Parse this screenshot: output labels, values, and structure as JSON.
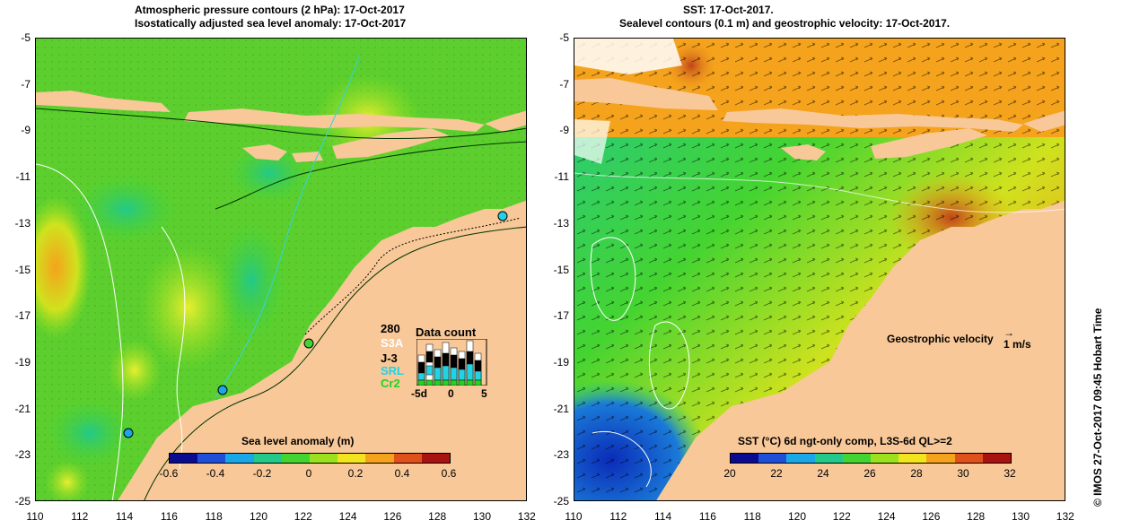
{
  "left_panel": {
    "title_line1": "Atmospheric pressure contours (2 hPa): 17-Oct-2017",
    "title_line2": "Isostatically adjusted sea level anomaly: 17-Oct-2017",
    "colorbar": {
      "title": "Sea level anomaly (m)",
      "ticks": [
        "-0.6",
        "-0.4",
        "-0.2",
        "0",
        "0.2",
        "0.4",
        "0.6"
      ],
      "colors": [
        "#0b0b8f",
        "#1f4fd8",
        "#1aa7e8",
        "#22c98a",
        "#44d431",
        "#9be21e",
        "#f2e41d",
        "#f5a31c",
        "#e0501a",
        "#a8130f"
      ]
    },
    "data_count": {
      "title": "Data count",
      "max_label": "280",
      "series": [
        {
          "label": "S3A",
          "color": "#ffffff"
        },
        {
          "label": "J-3",
          "color": "#000000"
        },
        {
          "label": "SRL",
          "color": "#22d3e6"
        },
        {
          "label": "Cr2",
          "color": "#22d322"
        }
      ],
      "xticks": [
        "-5d",
        "0",
        "5"
      ]
    }
  },
  "right_panel": {
    "title_line1": "SST: 17-Oct-2017.",
    "title_line2": "Sealevel contours (0.1 m) and geostrophic velocity: 17-Oct-2017.",
    "velocity_label": "Geostrophic velocity",
    "velocity_scale": "1 m/s",
    "colorbar": {
      "title": "SST (°C) 6d ngt-only comp, L3S-6d QL>=2",
      "ticks": [
        "20",
        "22",
        "24",
        "26",
        "28",
        "30",
        "32"
      ],
      "colors": [
        "#0b0b8f",
        "#1f4fd8",
        "#1aa7e8",
        "#22c98a",
        "#44d431",
        "#9be21e",
        "#f2e41d",
        "#f5a31c",
        "#e0501a",
        "#a8130f"
      ]
    }
  },
  "axes": {
    "y_ticks": [
      "-5",
      "-7",
      "-9",
      "-11",
      "-13",
      "-15",
      "-17",
      "-19",
      "-21",
      "-23",
      "-25"
    ],
    "x_ticks": [
      "110",
      "112",
      "114",
      "116",
      "118",
      "120",
      "122",
      "124",
      "126",
      "128",
      "130",
      "132"
    ]
  },
  "credit": "© IMOS 27-Oct-2017 09:45 Hobart Time"
}
